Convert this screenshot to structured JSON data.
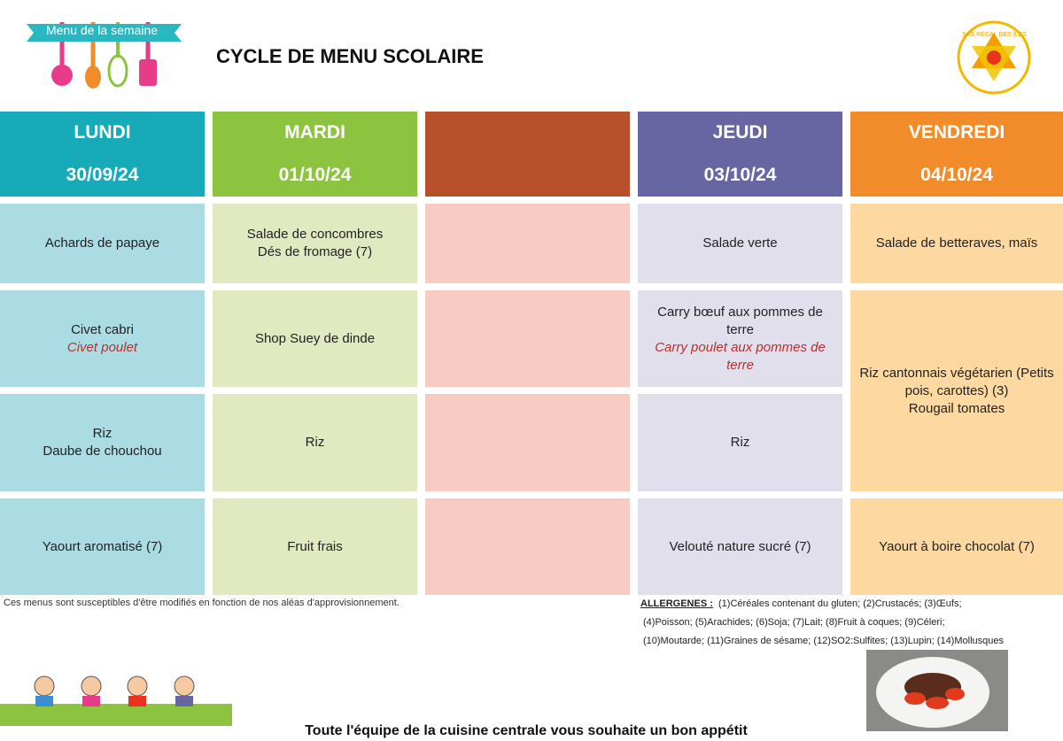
{
  "header": {
    "logo_text": "Menu de la semaine",
    "title": "CYCLE DE MENU SCOLAIRE",
    "brand": "SAS RÉGAL DES ÎLES"
  },
  "days": [
    {
      "day": "LUNDI",
      "date": "30/09/24",
      "rows": [
        {
          "lines": [
            "Achards de papaye"
          ]
        },
        {
          "lines": [
            "Civet cabri"
          ],
          "alternative": [
            "Civet poulet"
          ]
        },
        {
          "lines": [
            "Riz",
            "Daube de chouchou"
          ]
        },
        {
          "lines": [
            "Yaourt aromatisé (7)"
          ]
        }
      ]
    },
    {
      "day": "MARDI",
      "date": "01/10/24",
      "rows": [
        {
          "lines": [
            "Salade de concombres",
            "Dés de fromage (7)"
          ]
        },
        {
          "lines": [
            "Shop Suey de dinde"
          ]
        },
        {
          "lines": [
            "Riz"
          ]
        },
        {
          "lines": [
            "Fruit frais"
          ]
        }
      ]
    },
    {
      "day": "JEUDI",
      "date": "03/10/24",
      "rows": [
        {
          "lines": [
            "Salade verte"
          ]
        },
        {
          "lines": [
            "Carry bœuf aux pommes de terre"
          ],
          "alternative": [
            "Carry poulet aux pommes de terre"
          ]
        },
        {
          "lines": [
            "Riz"
          ]
        },
        {
          "lines": [
            "Velouté nature sucré (7)"
          ]
        }
      ]
    },
    {
      "day": "VENDREDI",
      "date": "04/10/24",
      "rows": [
        {
          "lines": [
            "Salade de betteraves, maïs"
          ]
        },
        {
          "lines": [
            "Riz cantonnais végétarien (Petits pois, carottes) (3)",
            "Rougail tomates"
          ]
        },
        {
          "lines": [
            "Yaourt à boire chocolat (7)"
          ]
        }
      ]
    }
  ],
  "note": "Ces menus sont susceptibles d'être modifiés en fonction de nos aléas d'approvisionnement.",
  "allergens": {
    "label": "ALLERGENES :",
    "lines": [
      "(1)Céréales contenant du gluten; (2)Crustacés; (3)Œufs;",
      "(4)Poisson; (5)Arachides; (6)Soja; (7)Lait; (8)Fruit à coques; (9)Céleri;",
      "(10)Moutarde; (11)Graines de sésame; (12)SO2:Sulfites; (13)Lupin; (14)Mollusques"
    ]
  },
  "footer": "Toute l'équipe de la cuisine centrale vous souhaite un bon appétit"
}
